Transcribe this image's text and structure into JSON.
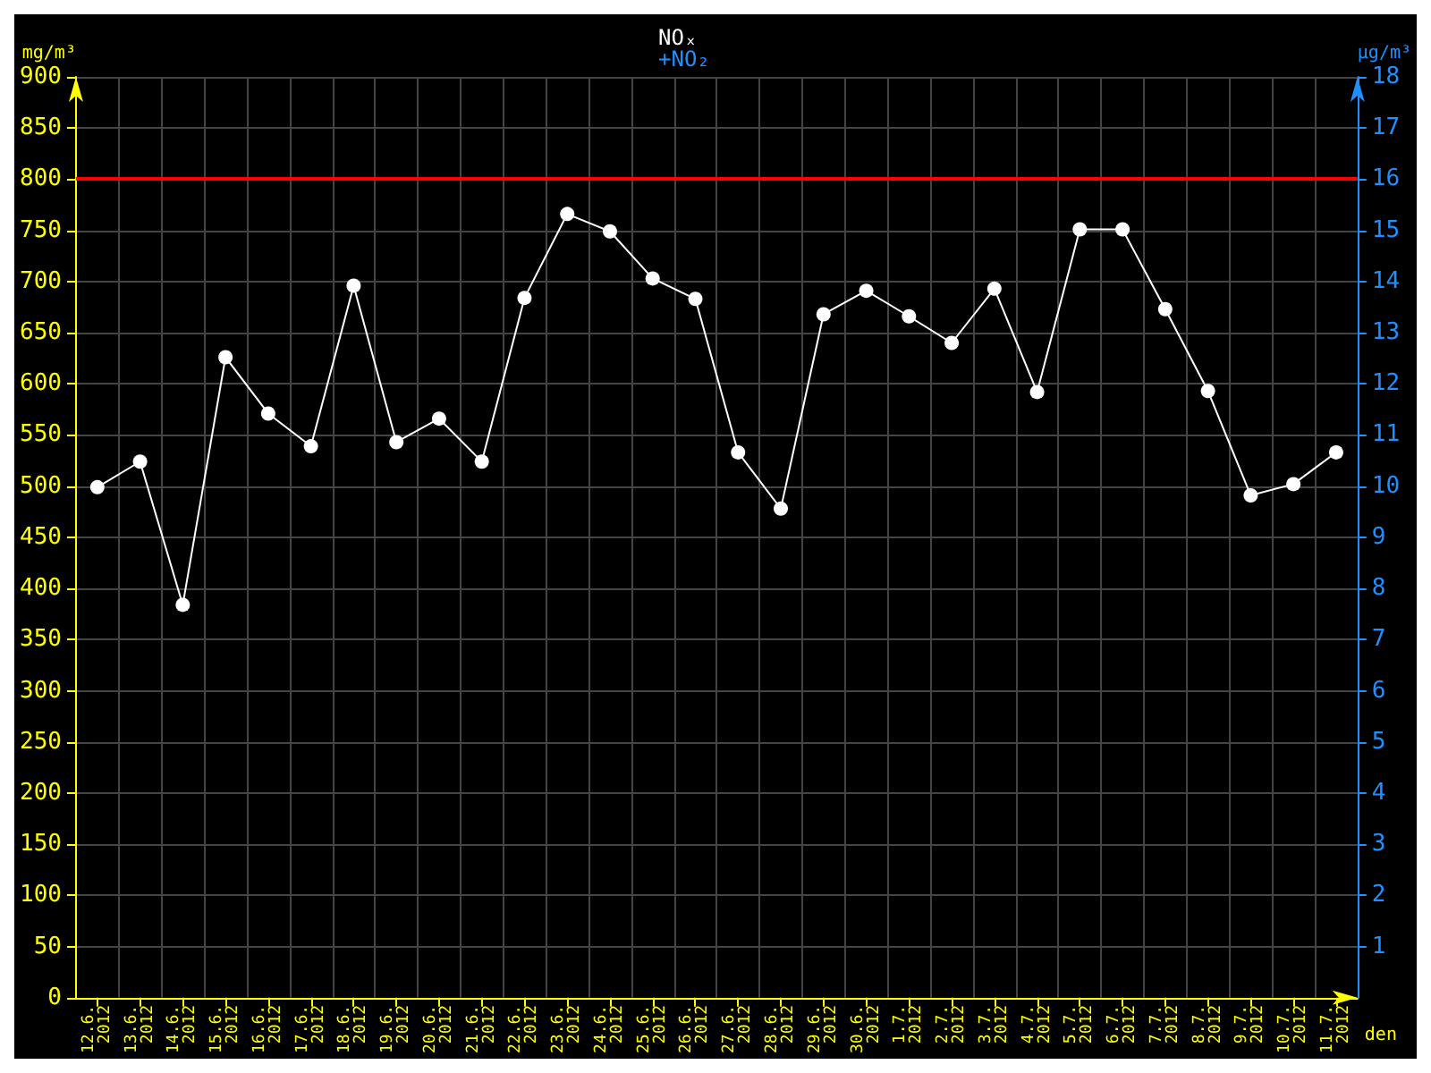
{
  "chart_data": {
    "type": "line",
    "title": "NOₓ",
    "subtitle": "+NO₂",
    "xlabel": "den",
    "ylabel": "mg/m³",
    "y2label": "µg/m³",
    "categories": [
      "12.6. 2012",
      "13.6. 2012",
      "14.6. 2012",
      "15.6. 2012",
      "16.6. 2012",
      "17.6. 2012",
      "18.6. 2012",
      "19.6. 2012",
      "20.6. 2012",
      "21.6. 2012",
      "22.6. 2012",
      "23.6. 2012",
      "24.6. 2012",
      "25.6. 2012",
      "26.6. 2012",
      "27.6. 2012",
      "28.6. 2012",
      "29.6. 2012",
      "30.6. 2012",
      "1.7. 2012",
      "2.7. 2012",
      "3.7. 2012",
      "4.7. 2012",
      "5.7. 2012",
      "6.7. 2012",
      "7.7. 2012",
      "8.7. 2012",
      "9.7. 2012",
      "10.7. 2012",
      "11.7. 2012"
    ],
    "series": [
      {
        "color": "#ffffff",
        "values": [
          499,
          524,
          384,
          626,
          571,
          539,
          696,
          543,
          566,
          524,
          684,
          766,
          749,
          703,
          683,
          533,
          478,
          668,
          691,
          666,
          640,
          693,
          592,
          751,
          751,
          673,
          593,
          491,
          502,
          533
        ]
      }
    ],
    "ylim": [
      0,
      900
    ],
    "yticks": [
      0,
      50,
      100,
      150,
      200,
      250,
      300,
      350,
      400,
      450,
      500,
      550,
      600,
      650,
      700,
      750,
      800,
      850,
      900
    ],
    "y2lim": [
      0,
      18
    ],
    "y2ticks": [
      1,
      2,
      3,
      4,
      5,
      6,
      7,
      8,
      9,
      10,
      11,
      12,
      13,
      14,
      15,
      16,
      17,
      18
    ],
    "ref_lines": [
      {
        "axis": "y",
        "value": 800,
        "color": "#ff0000"
      }
    ],
    "grid": true,
    "marker": "circle",
    "line_style": "solid"
  }
}
